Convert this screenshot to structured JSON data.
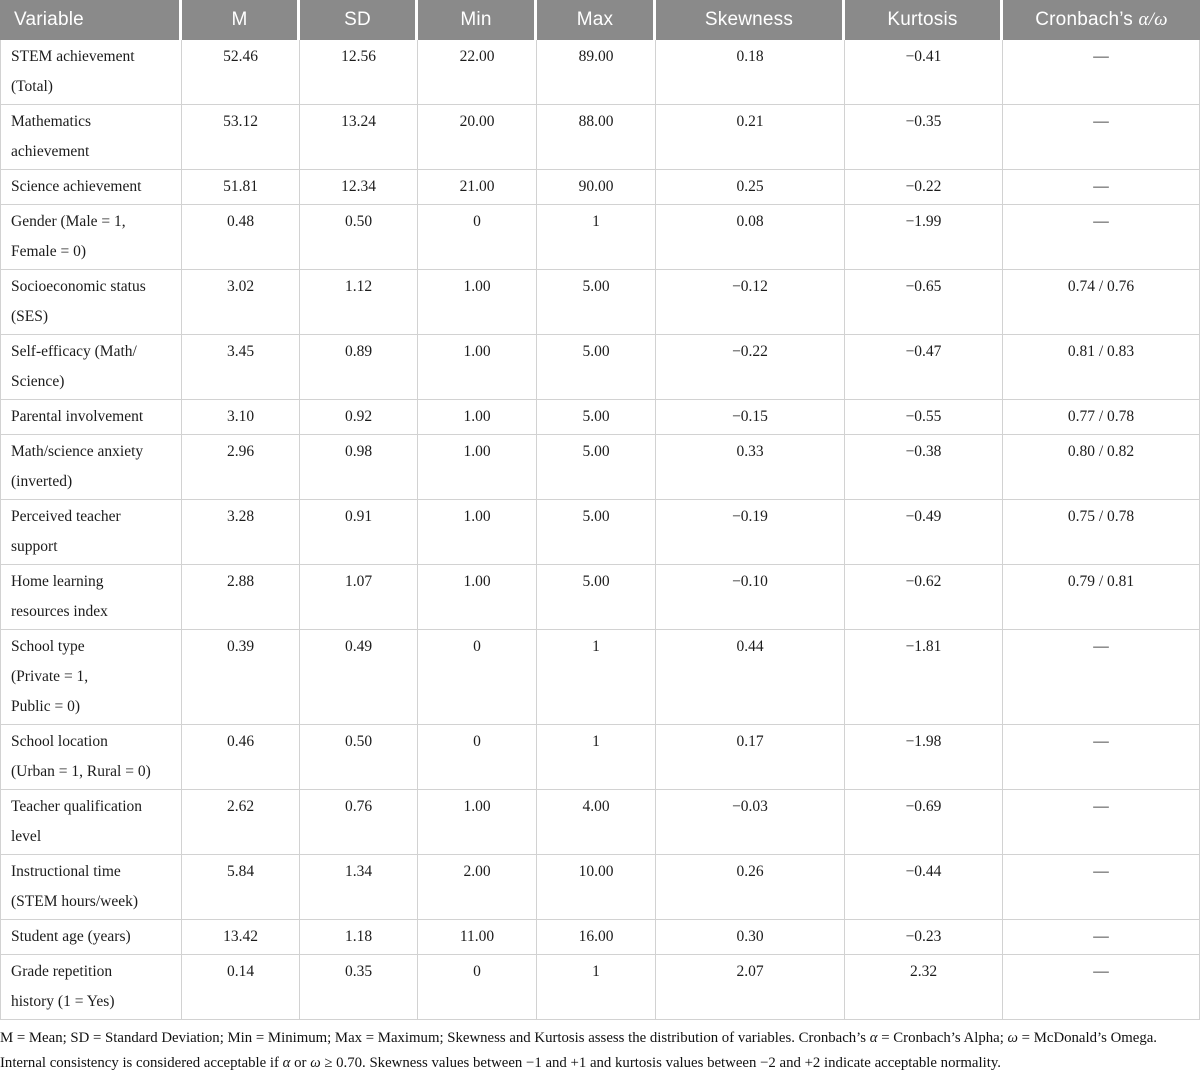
{
  "table": {
    "columns": [
      {
        "key": "variable",
        "label": "Variable"
      },
      {
        "key": "m",
        "label": "M"
      },
      {
        "key": "sd",
        "label": "SD"
      },
      {
        "key": "min",
        "label": "Min"
      },
      {
        "key": "max",
        "label": "Max"
      },
      {
        "key": "skewness",
        "label": "Skewness"
      },
      {
        "key": "kurtosis",
        "label": "Kurtosis"
      },
      {
        "key": "cronbach",
        "label": "Cronbach’s ",
        "math": "α/ω"
      }
    ],
    "rows": [
      {
        "variable": "STEM achievement\n(Total)",
        "m": "52.46",
        "sd": "12.56",
        "min": "22.00",
        "max": "89.00",
        "skewness": "0.18",
        "kurtosis": "−0.41",
        "cronbach": "—"
      },
      {
        "variable": "Mathematics\nachievement",
        "m": "53.12",
        "sd": "13.24",
        "min": "20.00",
        "max": "88.00",
        "skewness": "0.21",
        "kurtosis": "−0.35",
        "cronbach": "—"
      },
      {
        "variable": "Science achievement",
        "m": "51.81",
        "sd": "12.34",
        "min": "21.00",
        "max": "90.00",
        "skewness": "0.25",
        "kurtosis": "−0.22",
        "cronbach": "—"
      },
      {
        "variable": "Gender (Male = 1,\nFemale = 0)",
        "m": "0.48",
        "sd": "0.50",
        "min": "0",
        "max": "1",
        "skewness": "0.08",
        "kurtosis": "−1.99",
        "cronbach": "—"
      },
      {
        "variable": "Socioeconomic status\n(SES)",
        "m": "3.02",
        "sd": "1.12",
        "min": "1.00",
        "max": "5.00",
        "skewness": "−0.12",
        "kurtosis": "−0.65",
        "cronbach": "0.74 / 0.76"
      },
      {
        "variable": "Self-efficacy (Math/\nScience)",
        "m": "3.45",
        "sd": "0.89",
        "min": "1.00",
        "max": "5.00",
        "skewness": "−0.22",
        "kurtosis": "−0.47",
        "cronbach": "0.81 / 0.83"
      },
      {
        "variable": "Parental involvement",
        "m": "3.10",
        "sd": "0.92",
        "min": "1.00",
        "max": "5.00",
        "skewness": "−0.15",
        "kurtosis": "−0.55",
        "cronbach": "0.77 / 0.78"
      },
      {
        "variable": "Math/science anxiety\n(inverted)",
        "m": "2.96",
        "sd": "0.98",
        "min": "1.00",
        "max": "5.00",
        "skewness": "0.33",
        "kurtosis": "−0.38",
        "cronbach": "0.80 / 0.82"
      },
      {
        "variable": "Perceived teacher\nsupport",
        "m": "3.28",
        "sd": "0.91",
        "min": "1.00",
        "max": "5.00",
        "skewness": "−0.19",
        "kurtosis": "−0.49",
        "cronbach": "0.75 / 0.78"
      },
      {
        "variable": "Home learning\nresources index",
        "m": "2.88",
        "sd": "1.07",
        "min": "1.00",
        "max": "5.00",
        "skewness": "−0.10",
        "kurtosis": "−0.62",
        "cronbach": "0.79 / 0.81"
      },
      {
        "variable": "School type\n(Private = 1,\nPublic = 0)",
        "m": "0.39",
        "sd": "0.49",
        "min": "0",
        "max": "1",
        "skewness": "0.44",
        "kurtosis": "−1.81",
        "cronbach": "—"
      },
      {
        "variable": "School location\n(Urban = 1, Rural = 0)",
        "m": "0.46",
        "sd": "0.50",
        "min": "0",
        "max": "1",
        "skewness": "0.17",
        "kurtosis": "−1.98",
        "cronbach": "—"
      },
      {
        "variable": "Teacher qualification\nlevel",
        "m": "2.62",
        "sd": "0.76",
        "min": "1.00",
        "max": "4.00",
        "skewness": "−0.03",
        "kurtosis": "−0.69",
        "cronbach": "—"
      },
      {
        "variable": "Instructional time\n(STEM hours/week)",
        "m": "5.84",
        "sd": "1.34",
        "min": "2.00",
        "max": "10.00",
        "skewness": "0.26",
        "kurtosis": "−0.44",
        "cronbach": "—"
      },
      {
        "variable": "Student age (years)",
        "m": "13.42",
        "sd": "1.18",
        "min": "11.00",
        "max": "16.00",
        "skewness": "0.30",
        "kurtosis": "−0.23",
        "cronbach": "—"
      },
      {
        "variable": "Grade repetition\nhistory (1 = Yes)",
        "m": "0.14",
        "sd": "0.35",
        "min": "0",
        "max": "1",
        "skewness": "2.07",
        "kurtosis": "2.32",
        "cronbach": "—"
      }
    ]
  },
  "footnote": {
    "segments": [
      {
        "text": "M = Mean; SD = Standard Deviation; Min = Minimum; Max = Maximum; Skewness and Kurtosis assess the distribution of variables. Cronbach’s "
      },
      {
        "text": "α",
        "italic": true
      },
      {
        "text": " = Cronbach’s Alpha; "
      },
      {
        "text": "ω",
        "italic": true
      },
      {
        "text": " = McDonald’s Omega. Internal consistency is considered acceptable if "
      },
      {
        "text": "α",
        "italic": true
      },
      {
        "text": " or "
      },
      {
        "text": "ω",
        "italic": true
      },
      {
        "text": " ≥ 0.70. Skewness values between −1 and +1 and kurtosis values between −2 and +2 indicate acceptable normality."
      }
    ]
  },
  "colors": {
    "header_bg": "#8a8a8a",
    "header_text": "#ffffff",
    "grid": "#d2d2d2",
    "body_text": "#1c1c1c"
  }
}
